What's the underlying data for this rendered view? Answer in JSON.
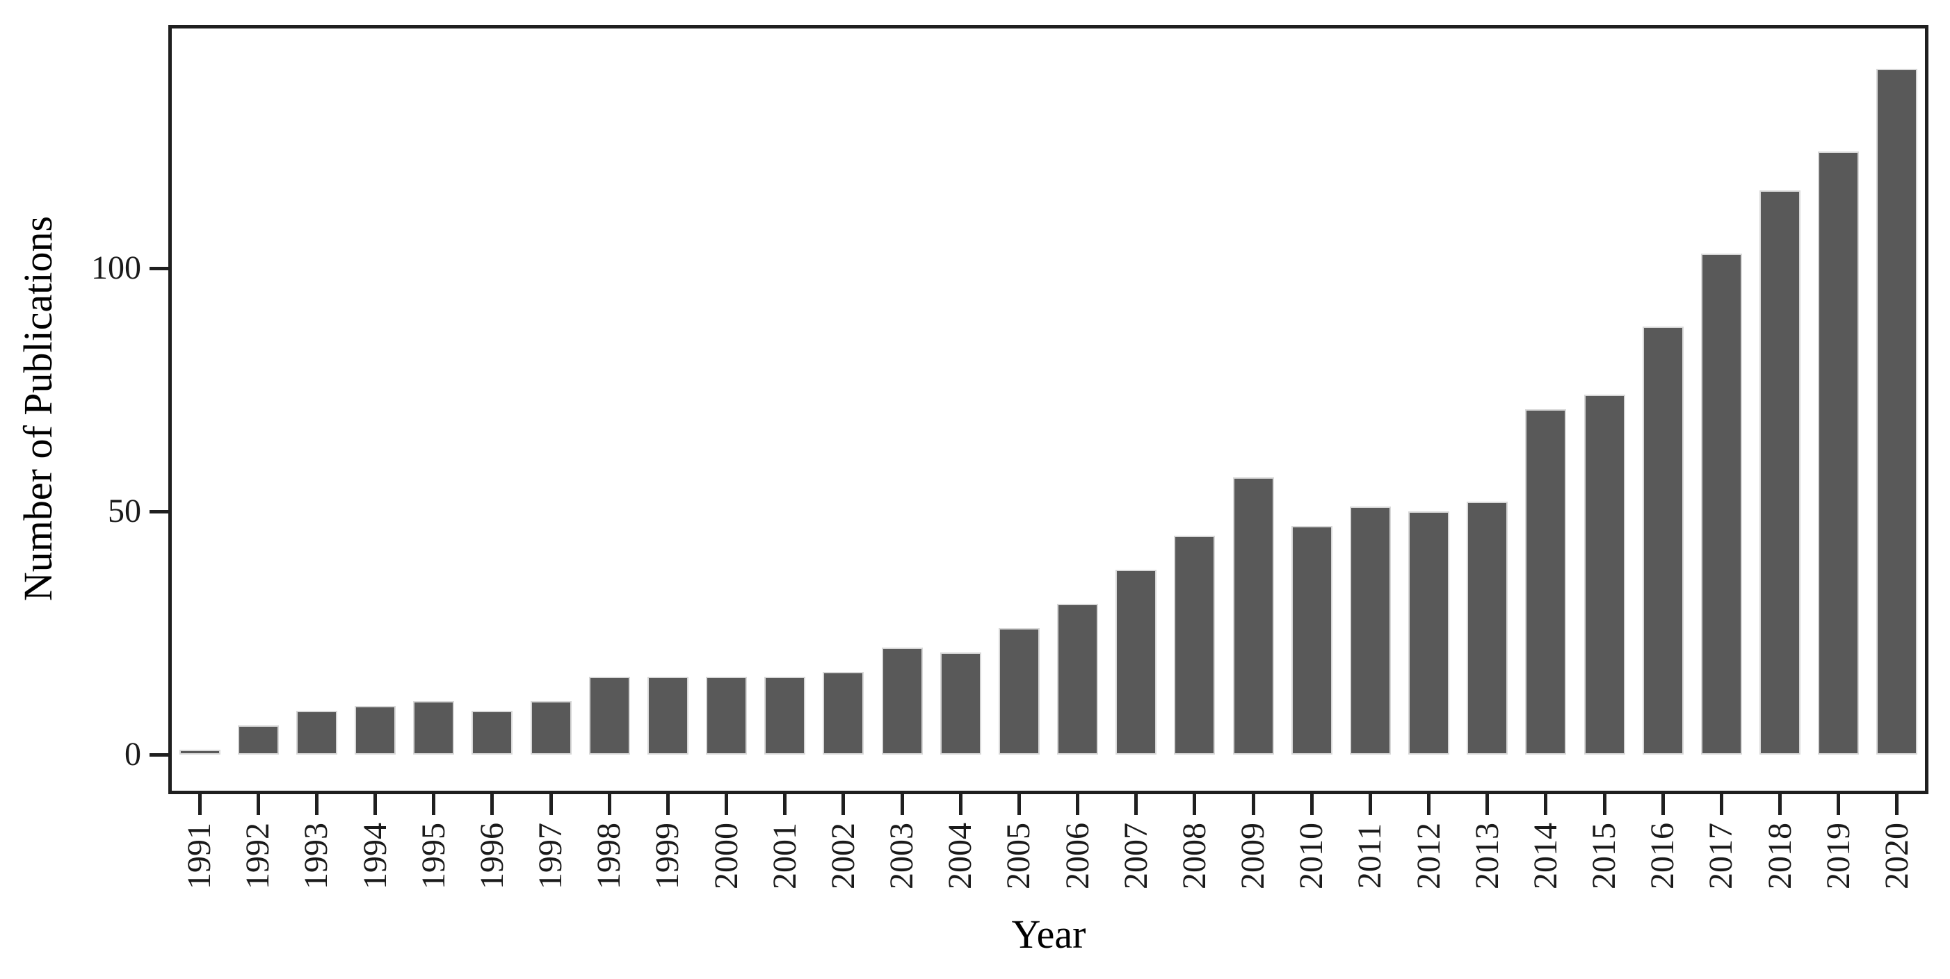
{
  "chart_data": {
    "type": "bar",
    "title": "",
    "xlabel": "Year",
    "ylabel": "Number of Publications",
    "categories": [
      "1991",
      "1992",
      "1993",
      "1994",
      "1995",
      "1996",
      "1997",
      "1998",
      "1999",
      "2000",
      "2001",
      "2002",
      "2003",
      "2004",
      "2005",
      "2006",
      "2007",
      "2008",
      "2009",
      "2010",
      "2011",
      "2012",
      "2013",
      "2014",
      "2015",
      "2016",
      "2017",
      "2018",
      "2019",
      "2020"
    ],
    "values": [
      1,
      6,
      9,
      10,
      11,
      9,
      11,
      16,
      16,
      16,
      16,
      17,
      22,
      21,
      26,
      31,
      38,
      45,
      57,
      47,
      51,
      50,
      52,
      71,
      74,
      88,
      103,
      116,
      124,
      141
    ],
    "yticks": [
      0,
      50,
      100
    ],
    "ytick_labels": [
      "0",
      "50",
      "100"
    ],
    "ylim": [
      0,
      150
    ],
    "grid": false,
    "legend": false,
    "colors": {
      "bar_fill": "#595959",
      "bar_stroke": "#d8d8d8",
      "axis_line": "#1f1f1f",
      "tick_text": "#1a1a1a",
      "title_text": "#000000",
      "background": "#ffffff"
    }
  }
}
